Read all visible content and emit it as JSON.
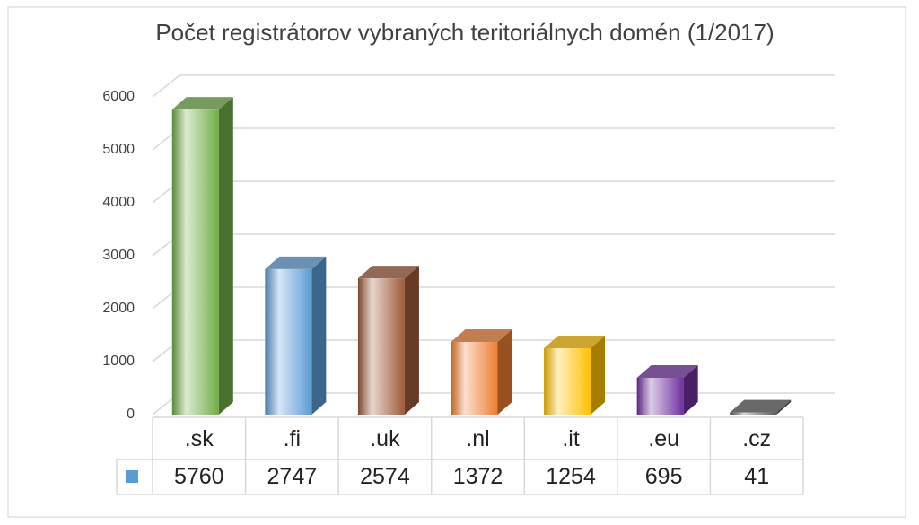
{
  "chart_data": {
    "type": "bar3d",
    "title": "Počet registrátorov vybraných teritoriálnych domén (1/2017)",
    "categories": [
      ".sk",
      ".fi",
      ".uk",
      ".nl",
      ".it",
      ".eu",
      ".cz"
    ],
    "values": [
      5760,
      2747,
      2574,
      1372,
      1254,
      695,
      41
    ],
    "color": "#5b9bd5",
    "colors": [
      "#70ad47",
      "#5b9bd5",
      "#9e5a3a",
      "#ed7d31",
      "#ffc000",
      "#7030a0",
      "#595959"
    ],
    "ylim": [
      0,
      6000
    ],
    "yticks": [
      0,
      1000,
      2000,
      3000,
      4000,
      5000,
      6000
    ],
    "grid": true,
    "data_table": true
  }
}
